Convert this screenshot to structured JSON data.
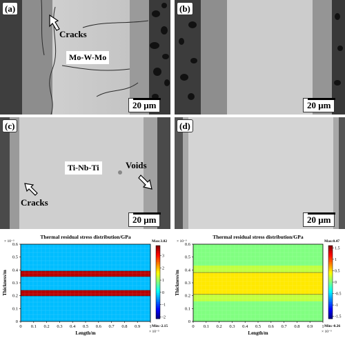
{
  "micrographs": {
    "a": {
      "tag": "(a)",
      "scale": "20 μm",
      "label_cracks": "Cracks",
      "label_material": "Mo-W-Mo"
    },
    "b": {
      "tag": "(b)",
      "scale": "20 μm"
    },
    "c": {
      "tag": "(c)",
      "scale": "20 μm",
      "label_cracks": "Cracks",
      "label_material": "Ti-Nb-Ti",
      "label_voids": "Voids"
    },
    "d": {
      "tag": "(d)",
      "scale": "20 μm"
    }
  },
  "chart_data": [
    {
      "type": "heatmap",
      "title": "Thermal residual stress distribution/GPa",
      "xlabel": "Length/m",
      "ylabel": "Thickness/m",
      "x_multiplier": "× 10⁻³",
      "y_multiplier": "× 10⁻³",
      "x_ticks": [
        "0",
        "0.1",
        "0.2",
        "0.3",
        "0.4",
        "0.5",
        "0.6",
        "0.7",
        "0.8",
        "0.9",
        "1"
      ],
      "y_ticks": [
        "0",
        "0.1",
        "0.2",
        "0.3",
        "0.4",
        "0.5",
        "0.6"
      ],
      "xlim": [
        0,
        1
      ],
      "ylim": [
        0,
        0.6
      ],
      "colorbar_ticks": [
        "3",
        "2",
        "1",
        "0",
        "-1",
        "-2"
      ],
      "colorbar_range": [
        -2.15,
        3.82
      ],
      "max_label": "Max:3.82",
      "min_label": "Min:-2.15",
      "bands": [
        {
          "y_center": 0.37,
          "half_height": 0.022,
          "stress": 3.5
        },
        {
          "y_center": 0.22,
          "half_height": 0.022,
          "stress": 3.5
        }
      ],
      "background_stress": -0.3
    },
    {
      "type": "heatmap",
      "title": "Thermal residual stress distribution/GPa",
      "xlabel": "Length/m",
      "ylabel": "Thickness/m",
      "x_multiplier": "× 10⁻³",
      "y_multiplier": "× 10⁻³",
      "x_ticks": [
        "0",
        "0.1",
        "0.2",
        "0.3",
        "0.4",
        "0.5",
        "0.6",
        "0.7",
        "0.8",
        "0.9",
        "1"
      ],
      "y_ticks": [
        "0",
        "0.1",
        "0.2",
        "0.3",
        "0.4",
        "0.5",
        "0.6"
      ],
      "xlim": [
        0,
        1
      ],
      "ylim": [
        0,
        0.6
      ],
      "colorbar_ticks": [
        "1.5",
        "1",
        "0.5",
        "0",
        "-0.5",
        "-1",
        "-1.5"
      ],
      "colorbar_range": [
        -1.6,
        1.6
      ],
      "max_label": "Max:0.47",
      "min_label": "Min:-0.26",
      "bands": [
        {
          "y_center": 0.295,
          "half_height": 0.085,
          "stress": 0.47
        }
      ],
      "background_stress": 0.0
    }
  ]
}
